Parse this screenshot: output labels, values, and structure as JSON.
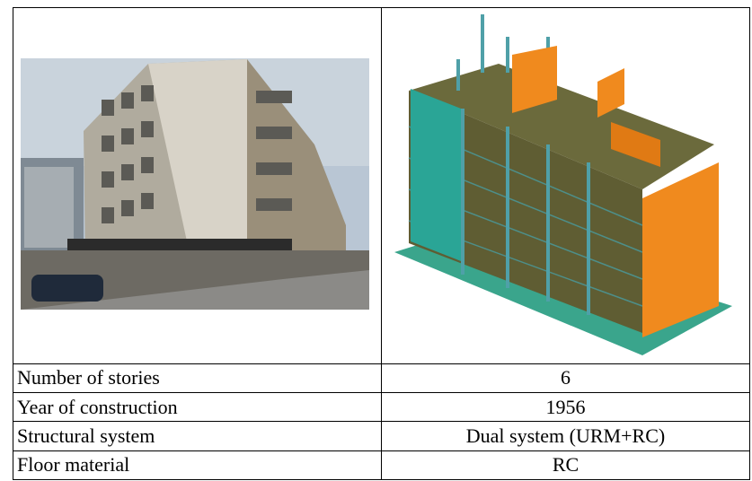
{
  "table": {
    "rows": [
      [
        "Number of stories",
        "6"
      ],
      [
        "Year of construction",
        "1956"
      ],
      [
        "Structural system",
        "Dual system (URM+RC)"
      ],
      [
        "Floor material",
        "RC"
      ]
    ]
  }
}
